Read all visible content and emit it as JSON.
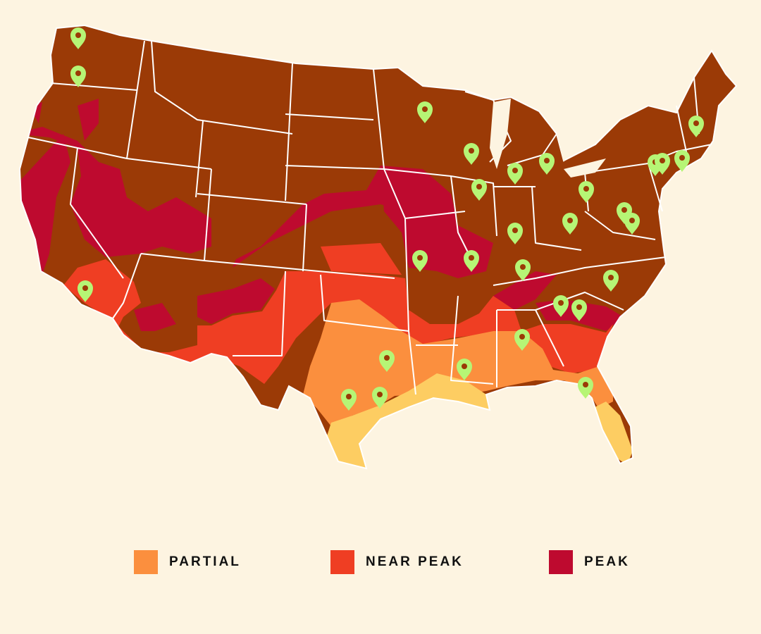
{
  "map": {
    "colors": {
      "background": "#fdf4e1",
      "not_yet": "#9b3a06",
      "peak": "#be0a2f",
      "near_peak": "#ef3e23",
      "partial": "#fb8f3e",
      "minimal": "#fdcd62",
      "state_border": "#ffffff",
      "marker": "#b6f575"
    },
    "marker_icon": "location-pin-icon"
  },
  "legend": {
    "items": [
      {
        "label": "PARTIAL",
        "color": "#fb8f3e"
      },
      {
        "label": "NEAR PEAK",
        "color": "#ef3e23"
      },
      {
        "label": "PEAK",
        "color": "#be0a2f"
      }
    ]
  }
}
